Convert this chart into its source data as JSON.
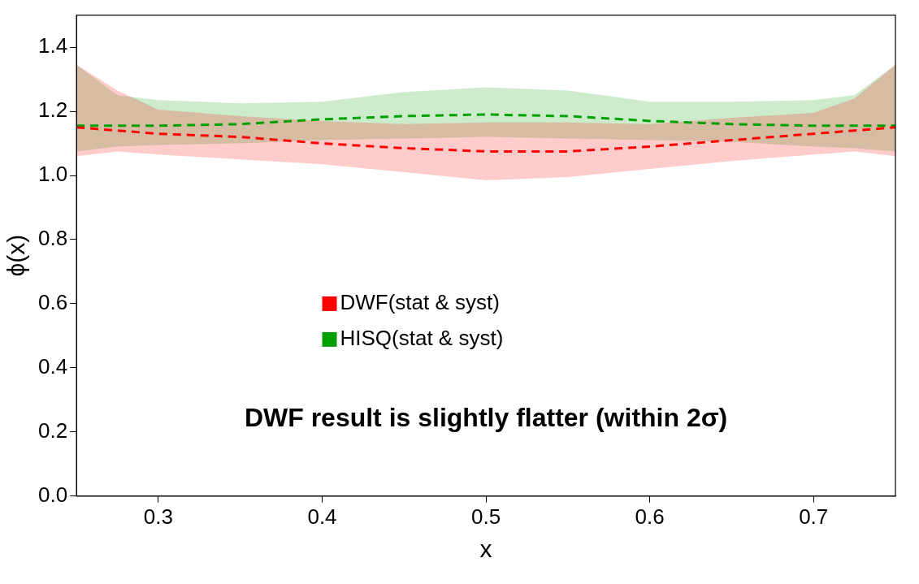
{
  "chart_data": {
    "type": "line",
    "xlabel": "x",
    "ylabel": "ϕ(x)",
    "x": [
      0.25,
      0.275,
      0.3,
      0.35,
      0.4,
      0.45,
      0.5,
      0.55,
      0.6,
      0.65,
      0.7,
      0.725,
      0.75
    ],
    "series": [
      {
        "name": "DWF(stat & syst)",
        "color": "#ff0000",
        "values": [
          1.15,
          1.14,
          1.13,
          1.12,
          1.1,
          1.085,
          1.075,
          1.075,
          1.09,
          1.11,
          1.13,
          1.14,
          1.15
        ],
        "lower": [
          1.06,
          1.075,
          1.065,
          1.05,
          1.035,
          1.01,
          0.985,
          0.995,
          1.02,
          1.045,
          1.065,
          1.075,
          1.06
        ],
        "upper": [
          1.345,
          1.265,
          1.205,
          1.185,
          1.17,
          1.16,
          1.165,
          1.165,
          1.16,
          1.18,
          1.195,
          1.24,
          1.345
        ]
      },
      {
        "name": "HISQ(stat & syst)",
        "color": "#00a000",
        "values": [
          1.155,
          1.155,
          1.155,
          1.16,
          1.175,
          1.185,
          1.19,
          1.185,
          1.17,
          1.16,
          1.155,
          1.155,
          1.155
        ],
        "lower": [
          1.075,
          1.09,
          1.095,
          1.1,
          1.11,
          1.115,
          1.12,
          1.115,
          1.11,
          1.105,
          1.09,
          1.085,
          1.075
        ],
        "upper": [
          1.345,
          1.25,
          1.235,
          1.225,
          1.23,
          1.26,
          1.275,
          1.265,
          1.23,
          1.23,
          1.235,
          1.25,
          1.345
        ]
      }
    ],
    "xlim": [
      0.25,
      0.75
    ],
    "xticks": [
      0.3,
      0.4,
      0.5,
      0.6,
      0.7
    ],
    "ylim": [
      0,
      1.5
    ],
    "yticks": [
      {
        "value": 0,
        "label": "0.0"
      },
      0.2,
      0.4,
      0.6,
      0.8,
      {
        "value": 1,
        "label": "1.0"
      },
      1.2,
      1.4
    ],
    "line_style": "dashed",
    "marker": "none",
    "grid": false,
    "legend": "center",
    "annotations": [
      "DWF result is slightly flatter (within 2σ)"
    ]
  }
}
